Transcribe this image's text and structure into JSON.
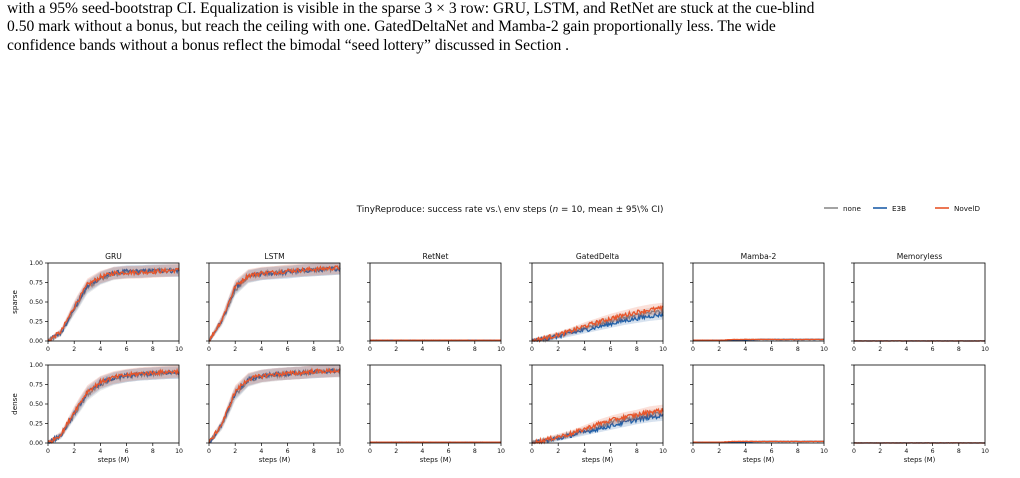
{
  "caption": {
    "lines": [
      "with a 95% seed-bootstrap CI. Equalization is visible in the sparse 3 × 3 row: GRU, LSTM, and RetNet are stuck at the cue-blind",
      "0.50 mark without a bonus, but reach the ceiling with one. GatedDeltaNet and Mamba-2 gain proportionally less. The wide",
      "confidence bands without a bonus reflect the bimodal “seed lottery” discussed in Section ."
    ]
  },
  "colors": {
    "none": "#8c8c8c",
    "E3B": "#1f5fa8",
    "NovelD": "#e8552a",
    "axis": "#000000"
  },
  "chart_data": {
    "type": "line",
    "title": "TinyReproduce: success rate vs.\\ env steps (n = 10, mean ± 95\\% CI)",
    "legend": {
      "placement": "top-right",
      "entries": [
        "none",
        "E3B",
        "NovelD"
      ]
    },
    "columns": [
      "GRU",
      "LSTM",
      "RetNet",
      "GatedDelta",
      "Mamba-2",
      "Memoryless"
    ],
    "rows": [
      "sparse",
      "dense"
    ],
    "xlabel": "steps (M)",
    "xlim": [
      0,
      10
    ],
    "ylim": [
      0,
      1
    ],
    "xticks": [
      "0",
      "2",
      "4",
      "6",
      "8",
      "10"
    ],
    "yticks": [
      "0.00",
      "0.25",
      "0.50",
      "0.75",
      "1.00"
    ],
    "x": [
      0,
      1,
      2,
      3,
      4,
      5,
      6,
      7,
      8,
      9,
      10
    ],
    "panels": [
      {
        "row": "sparse",
        "col": "GRU",
        "series": [
          {
            "name": "none",
            "values": [
              0.0,
              0.1,
              0.4,
              0.68,
              0.8,
              0.86,
              0.88,
              0.89,
              0.9,
              0.91,
              0.91
            ]
          },
          {
            "name": "E3B",
            "values": [
              0.0,
              0.11,
              0.42,
              0.7,
              0.81,
              0.87,
              0.89,
              0.89,
              0.9,
              0.9,
              0.9
            ]
          },
          {
            "name": "NovelD",
            "values": [
              0.0,
              0.12,
              0.44,
              0.72,
              0.82,
              0.87,
              0.88,
              0.88,
              0.89,
              0.9,
              0.91
            ]
          }
        ]
      },
      {
        "row": "sparse",
        "col": "LSTM",
        "series": [
          {
            "name": "none",
            "values": [
              0.0,
              0.25,
              0.66,
              0.82,
              0.86,
              0.88,
              0.89,
              0.9,
              0.91,
              0.92,
              0.93
            ]
          },
          {
            "name": "E3B",
            "values": [
              0.0,
              0.27,
              0.68,
              0.83,
              0.86,
              0.87,
              0.88,
              0.9,
              0.91,
              0.92,
              0.93
            ]
          },
          {
            "name": "NovelD",
            "values": [
              0.0,
              0.28,
              0.7,
              0.84,
              0.87,
              0.88,
              0.9,
              0.91,
              0.92,
              0.93,
              0.94
            ]
          }
        ]
      },
      {
        "row": "sparse",
        "col": "RetNet",
        "series": [
          {
            "name": "none",
            "values": [
              0.01,
              0.01,
              0.01,
              0.01,
              0.01,
              0.01,
              0.01,
              0.01,
              0.01,
              0.01,
              0.01
            ]
          },
          {
            "name": "E3B",
            "values": [
              0.01,
              0.01,
              0.01,
              0.01,
              0.01,
              0.01,
              0.01,
              0.01,
              0.01,
              0.01,
              0.01
            ]
          },
          {
            "name": "NovelD",
            "values": [
              0.01,
              0.01,
              0.01,
              0.01,
              0.01,
              0.01,
              0.01,
              0.01,
              0.01,
              0.01,
              0.01
            ]
          }
        ]
      },
      {
        "row": "sparse",
        "col": "GatedDelta",
        "series": [
          {
            "name": "none",
            "values": [
              0.0,
              0.03,
              0.07,
              0.12,
              0.17,
              0.22,
              0.26,
              0.3,
              0.33,
              0.36,
              0.38
            ]
          },
          {
            "name": "E3B",
            "values": [
              0.0,
              0.03,
              0.06,
              0.1,
              0.14,
              0.18,
              0.22,
              0.26,
              0.29,
              0.32,
              0.34
            ]
          },
          {
            "name": "NovelD",
            "values": [
              0.0,
              0.04,
              0.08,
              0.13,
              0.19,
              0.24,
              0.29,
              0.33,
              0.37,
              0.4,
              0.42
            ]
          }
        ]
      },
      {
        "row": "sparse",
        "col": "Mamba-2",
        "series": [
          {
            "name": "none",
            "values": [
              0.01,
              0.01,
              0.01,
              0.01,
              0.02,
              0.02,
              0.02,
              0.02,
              0.02,
              0.02,
              0.02
            ]
          },
          {
            "name": "E3B",
            "values": [
              0.01,
              0.01,
              0.01,
              0.01,
              0.01,
              0.02,
              0.02,
              0.02,
              0.02,
              0.02,
              0.02
            ]
          },
          {
            "name": "NovelD",
            "values": [
              0.01,
              0.01,
              0.01,
              0.02,
              0.02,
              0.02,
              0.02,
              0.02,
              0.02,
              0.02,
              0.02
            ]
          }
        ]
      },
      {
        "row": "sparse",
        "col": "Memoryless",
        "series": [
          {
            "name": "none",
            "values": [
              0.0,
              0.0,
              0.0,
              0.0,
              0.0,
              0.0,
              0.0,
              0.0,
              0.0,
              0.0,
              0.0
            ]
          },
          {
            "name": "E3B",
            "values": [
              0.0,
              0.0,
              0.0,
              0.0,
              0.0,
              0.0,
              0.0,
              0.0,
              0.0,
              0.0,
              0.0
            ]
          },
          {
            "name": "NovelD",
            "values": [
              0.0,
              0.0,
              0.0,
              0.0,
              0.0,
              0.0,
              0.0,
              0.0,
              0.0,
              0.0,
              0.0
            ]
          }
        ]
      },
      {
        "row": "dense",
        "col": "GRU",
        "series": [
          {
            "name": "none",
            "values": [
              0.0,
              0.09,
              0.36,
              0.62,
              0.75,
              0.82,
              0.86,
              0.88,
              0.89,
              0.9,
              0.91
            ]
          },
          {
            "name": "E3B",
            "values": [
              0.0,
              0.1,
              0.38,
              0.64,
              0.77,
              0.83,
              0.86,
              0.88,
              0.89,
              0.9,
              0.9
            ]
          },
          {
            "name": "NovelD",
            "values": [
              0.0,
              0.11,
              0.4,
              0.66,
              0.78,
              0.84,
              0.87,
              0.89,
              0.9,
              0.91,
              0.92
            ]
          }
        ]
      },
      {
        "row": "dense",
        "col": "LSTM",
        "series": [
          {
            "name": "none",
            "values": [
              0.0,
              0.22,
              0.62,
              0.8,
              0.85,
              0.87,
              0.89,
              0.9,
              0.91,
              0.92,
              0.92
            ]
          },
          {
            "name": "E3B",
            "values": [
              0.0,
              0.24,
              0.64,
              0.81,
              0.86,
              0.88,
              0.89,
              0.9,
              0.91,
              0.92,
              0.93
            ]
          },
          {
            "name": "NovelD",
            "values": [
              0.0,
              0.25,
              0.66,
              0.82,
              0.86,
              0.88,
              0.89,
              0.9,
              0.92,
              0.92,
              0.93
            ]
          }
        ]
      },
      {
        "row": "dense",
        "col": "RetNet",
        "series": [
          {
            "name": "none",
            "values": [
              0.01,
              0.01,
              0.01,
              0.01,
              0.01,
              0.01,
              0.01,
              0.01,
              0.01,
              0.01,
              0.01
            ]
          },
          {
            "name": "E3B",
            "values": [
              0.01,
              0.01,
              0.01,
              0.01,
              0.01,
              0.01,
              0.01,
              0.01,
              0.01,
              0.01,
              0.01
            ]
          },
          {
            "name": "NovelD",
            "values": [
              0.01,
              0.01,
              0.01,
              0.01,
              0.01,
              0.01,
              0.01,
              0.01,
              0.01,
              0.01,
              0.01
            ]
          }
        ]
      },
      {
        "row": "dense",
        "col": "GatedDelta",
        "series": [
          {
            "name": "none",
            "values": [
              0.0,
              0.03,
              0.07,
              0.11,
              0.16,
              0.21,
              0.26,
              0.3,
              0.33,
              0.36,
              0.38
            ]
          },
          {
            "name": "E3B",
            "values": [
              0.0,
              0.03,
              0.06,
              0.1,
              0.14,
              0.18,
              0.22,
              0.26,
              0.3,
              0.33,
              0.35
            ]
          },
          {
            "name": "NovelD",
            "values": [
              0.0,
              0.04,
              0.08,
              0.12,
              0.18,
              0.24,
              0.29,
              0.33,
              0.36,
              0.4,
              0.42
            ]
          }
        ]
      },
      {
        "row": "dense",
        "col": "Mamba-2",
        "series": [
          {
            "name": "none",
            "values": [
              0.01,
              0.01,
              0.01,
              0.01,
              0.02,
              0.02,
              0.02,
              0.02,
              0.02,
              0.02,
              0.02
            ]
          },
          {
            "name": "E3B",
            "values": [
              0.01,
              0.01,
              0.01,
              0.01,
              0.01,
              0.02,
              0.02,
              0.02,
              0.02,
              0.02,
              0.02
            ]
          },
          {
            "name": "NovelD",
            "values": [
              0.01,
              0.01,
              0.01,
              0.02,
              0.02,
              0.02,
              0.02,
              0.02,
              0.02,
              0.02,
              0.02
            ]
          }
        ]
      },
      {
        "row": "dense",
        "col": "Memoryless",
        "series": [
          {
            "name": "none",
            "values": [
              0.0,
              0.0,
              0.0,
              0.0,
              0.0,
              0.0,
              0.0,
              0.0,
              0.0,
              0.0,
              0.0
            ]
          },
          {
            "name": "E3B",
            "values": [
              0.0,
              0.0,
              0.0,
              0.0,
              0.0,
              0.0,
              0.0,
              0.0,
              0.0,
              0.0,
              0.0
            ]
          },
          {
            "name": "NovelD",
            "values": [
              0.0,
              0.0,
              0.0,
              0.0,
              0.0,
              0.0,
              0.0,
              0.0,
              0.0,
              0.0,
              0.0
            ]
          }
        ]
      }
    ]
  }
}
